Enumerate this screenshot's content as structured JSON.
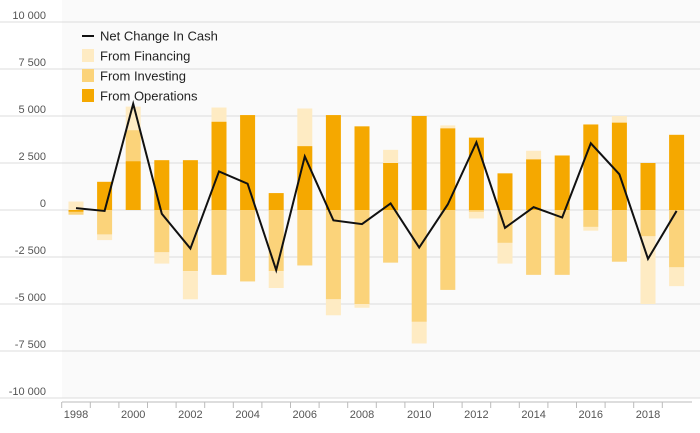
{
  "chart_data": {
    "type": "bar",
    "subtype": "stacked bar with line overlay",
    "title": "",
    "xlabel": "",
    "ylabel": "",
    "ylim": [
      -10000,
      10000
    ],
    "y_ticks": [
      10000,
      7500,
      5000,
      2500,
      0,
      -2500,
      -5000,
      -7500,
      -10000
    ],
    "y_tick_labels": [
      "10 000",
      "7 500",
      "5 000",
      "2 500",
      "0",
      "-2 500",
      "-5 000",
      "-7 500",
      "-10 000"
    ],
    "x_tick_labels": [
      "1998",
      "2000",
      "2002",
      "2004",
      "2006",
      "2008",
      "2010",
      "2012",
      "2014",
      "2016",
      "2018"
    ],
    "categories": [
      "1998",
      "1999",
      "2000",
      "2001",
      "2002",
      "2003",
      "2004",
      "2005",
      "2006",
      "2007",
      "2008",
      "2009",
      "2010",
      "2011",
      "2012",
      "2013",
      "2014",
      "2015",
      "2016",
      "2017",
      "2018",
      "2019"
    ],
    "grid": true,
    "legend_position": "top-left",
    "series": [
      {
        "name": "From Operations",
        "kind": "bar",
        "color": "#f5a800",
        "values": [
          -100,
          1500,
          2600,
          2650,
          2650,
          4700,
          5050,
          900,
          3400,
          5050,
          4450,
          2500,
          5000,
          4350,
          3850,
          1950,
          2700,
          2900,
          4550,
          4650,
          2500,
          4000
        ]
      },
      {
        "name": "From Investing",
        "kind": "bar",
        "color": "#fbd37a",
        "values": [
          -150,
          -1300,
          1650,
          -2250,
          -3250,
          -3450,
          -3800,
          -3250,
          -2950,
          -4750,
          -5000,
          -2800,
          -5950,
          -4250,
          -100,
          -1750,
          -3450,
          -3450,
          -900,
          -2750,
          -1400,
          -3050
        ]
      },
      {
        "name": "From Financing",
        "kind": "bar",
        "color": "#feebc3",
        "values": [
          450,
          -300,
          1250,
          -600,
          -1500,
          750,
          0,
          -900,
          2000,
          -850,
          -200,
          700,
          -1150,
          150,
          -350,
          -1100,
          450,
          0,
          -200,
          350,
          -3600,
          -1000
        ]
      },
      {
        "name": "Net Change In Cash",
        "kind": "line",
        "color": "#111111",
        "values": [
          100,
          -50,
          5650,
          -200,
          -2050,
          2050,
          1400,
          -3200,
          2850,
          -550,
          -750,
          350,
          -2000,
          300,
          3600,
          -950,
          150,
          -400,
          3550,
          1900,
          -2600,
          -50
        ]
      }
    ]
  }
}
